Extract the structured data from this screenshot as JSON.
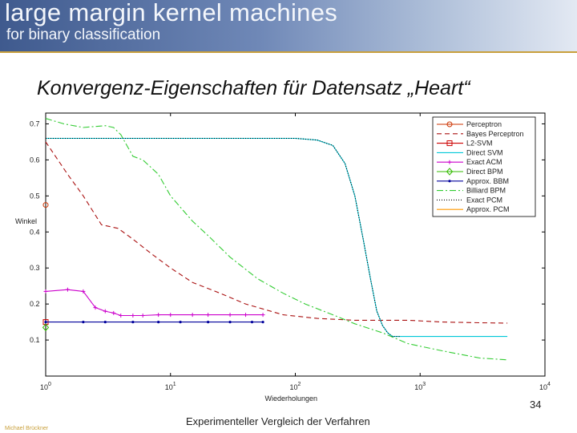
{
  "header": {
    "title": "large margin kernel machines",
    "subtitle": "for binary classification"
  },
  "slide": {
    "title": "Konvergenz-Eigenschaften für Datensatz „Heart“",
    "number": "34",
    "footer": "Experimenteller Vergleich der Verfahren",
    "author": "Michael Brückner"
  },
  "colors": {
    "header_start": "#3f5a8e",
    "header_end": "#e3e9f3",
    "accent_rule": "#c9a03c"
  },
  "chart_data": {
    "type": "line",
    "xlabel": "Wiederholungen",
    "ylabel": "Winkel",
    "x_scale": "log",
    "xlim": [
      1,
      10000
    ],
    "ylim": [
      0.0,
      0.73
    ],
    "x_ticks": [
      {
        "value": 1,
        "base": "10",
        "exp": "0"
      },
      {
        "value": 10,
        "base": "10",
        "exp": "1"
      },
      {
        "value": 100,
        "base": "10",
        "exp": "2"
      },
      {
        "value": 1000,
        "base": "10",
        "exp": "3"
      },
      {
        "value": 10000,
        "base": "10",
        "exp": "4"
      }
    ],
    "y_ticks": [
      {
        "value": 0.1,
        "label": "0.1"
      },
      {
        "value": 0.2,
        "label": "0.2"
      },
      {
        "value": 0.3,
        "label": "0.3"
      },
      {
        "value": 0.4,
        "label": "0.4"
      },
      {
        "value": 0.5,
        "label": "0.5"
      },
      {
        "value": 0.6,
        "label": "0.6"
      },
      {
        "value": 0.7,
        "label": "0.7"
      }
    ],
    "legend_position": "top-right",
    "series": [
      {
        "name": "Perceptron",
        "color": "#cc3300",
        "dash": "",
        "marker": "circle",
        "points": [
          [
            1,
            0.475
          ]
        ]
      },
      {
        "name": "Bayes Perceptron",
        "color": "#aa1111",
        "dash": "6,4",
        "marker": "none",
        "points": [
          [
            1,
            0.65
          ],
          [
            1.5,
            0.56
          ],
          [
            2,
            0.5
          ],
          [
            2.8,
            0.42
          ],
          [
            3.8,
            0.41
          ],
          [
            5,
            0.38
          ],
          [
            7,
            0.34
          ],
          [
            10,
            0.3
          ],
          [
            15,
            0.26
          ],
          [
            25,
            0.23
          ],
          [
            40,
            0.2
          ],
          [
            80,
            0.17
          ],
          [
            150,
            0.16
          ],
          [
            300,
            0.155
          ],
          [
            800,
            0.155
          ],
          [
            1500,
            0.15
          ],
          [
            3000,
            0.148
          ],
          [
            5000,
            0.147
          ]
        ]
      },
      {
        "name": "L2-SVM",
        "color": "#cc0000",
        "dash": "",
        "marker": "square",
        "points": [
          [
            1,
            0.15
          ]
        ]
      },
      {
        "name": "Direct SVM",
        "color": "#00c8d8",
        "dash": "",
        "marker": "none",
        "points": [
          [
            1,
            0.66
          ],
          [
            10,
            0.66
          ],
          [
            60,
            0.66
          ],
          [
            100,
            0.66
          ],
          [
            150,
            0.655
          ],
          [
            200,
            0.64
          ],
          [
            250,
            0.59
          ],
          [
            300,
            0.5
          ],
          [
            350,
            0.38
          ],
          [
            400,
            0.27
          ],
          [
            450,
            0.18
          ],
          [
            500,
            0.14
          ],
          [
            550,
            0.12
          ],
          [
            600,
            0.11
          ],
          [
            700,
            0.11
          ],
          [
            3000,
            0.11
          ],
          [
            5000,
            0.11
          ]
        ]
      },
      {
        "name": "Exact ACM",
        "color": "#cc00cc",
        "dash": "",
        "marker": "plus",
        "points": [
          [
            1,
            0.235
          ],
          [
            1.5,
            0.24
          ],
          [
            2,
            0.235
          ],
          [
            2.5,
            0.19
          ],
          [
            3,
            0.18
          ],
          [
            3.5,
            0.175
          ],
          [
            4,
            0.168
          ],
          [
            5,
            0.168
          ],
          [
            6,
            0.168
          ],
          [
            8,
            0.17
          ],
          [
            10,
            0.17
          ],
          [
            15,
            0.17
          ],
          [
            20,
            0.17
          ],
          [
            30,
            0.17
          ],
          [
            40,
            0.17
          ],
          [
            55,
            0.17
          ]
        ]
      },
      {
        "name": "Direct BPM",
        "color": "#33bb00",
        "dash": "",
        "marker": "diamond",
        "points": [
          [
            1,
            0.135
          ]
        ]
      },
      {
        "name": "Approx. BBM",
        "color": "#00009c",
        "dash": "",
        "marker": "dot",
        "points": [
          [
            1,
            0.15
          ],
          [
            2,
            0.15
          ],
          [
            3,
            0.15
          ],
          [
            5,
            0.15
          ],
          [
            8,
            0.15
          ],
          [
            12,
            0.15
          ],
          [
            20,
            0.15
          ],
          [
            30,
            0.15
          ],
          [
            45,
            0.15
          ],
          [
            55,
            0.15
          ]
        ]
      },
      {
        "name": "Billiard BPM",
        "color": "#33cc33",
        "dash": "8,3,2,3",
        "marker": "none",
        "points": [
          [
            1,
            0.715
          ],
          [
            1.4,
            0.7
          ],
          [
            2,
            0.69
          ],
          [
            3,
            0.695
          ],
          [
            3.5,
            0.69
          ],
          [
            4,
            0.67
          ],
          [
            5,
            0.61
          ],
          [
            6,
            0.6
          ],
          [
            8,
            0.56
          ],
          [
            10,
            0.5
          ],
          [
            15,
            0.43
          ],
          [
            20,
            0.39
          ],
          [
            30,
            0.33
          ],
          [
            50,
            0.27
          ],
          [
            80,
            0.23
          ],
          [
            120,
            0.2
          ],
          [
            200,
            0.17
          ],
          [
            300,
            0.145
          ],
          [
            500,
            0.12
          ],
          [
            800,
            0.09
          ],
          [
            1500,
            0.07
          ],
          [
            3000,
            0.05
          ],
          [
            5000,
            0.045
          ]
        ]
      },
      {
        "name": "Exact PCM",
        "color": "#000000",
        "dash": "1,2",
        "marker": "none",
        "points": [
          [
            1,
            0.66
          ],
          [
            10,
            0.66
          ],
          [
            60,
            0.66
          ],
          [
            100,
            0.66
          ],
          [
            150,
            0.655
          ],
          [
            200,
            0.64
          ],
          [
            250,
            0.59
          ],
          [
            300,
            0.5
          ],
          [
            350,
            0.38
          ],
          [
            400,
            0.27
          ],
          [
            450,
            0.18
          ],
          [
            500,
            0.14
          ],
          [
            550,
            0.12
          ],
          [
            600,
            0.11
          ],
          [
            700,
            0.11
          ]
        ]
      },
      {
        "name": "Approx. PCM",
        "color": "#ff9900",
        "dash": "",
        "marker": "none",
        "points": []
      }
    ]
  }
}
